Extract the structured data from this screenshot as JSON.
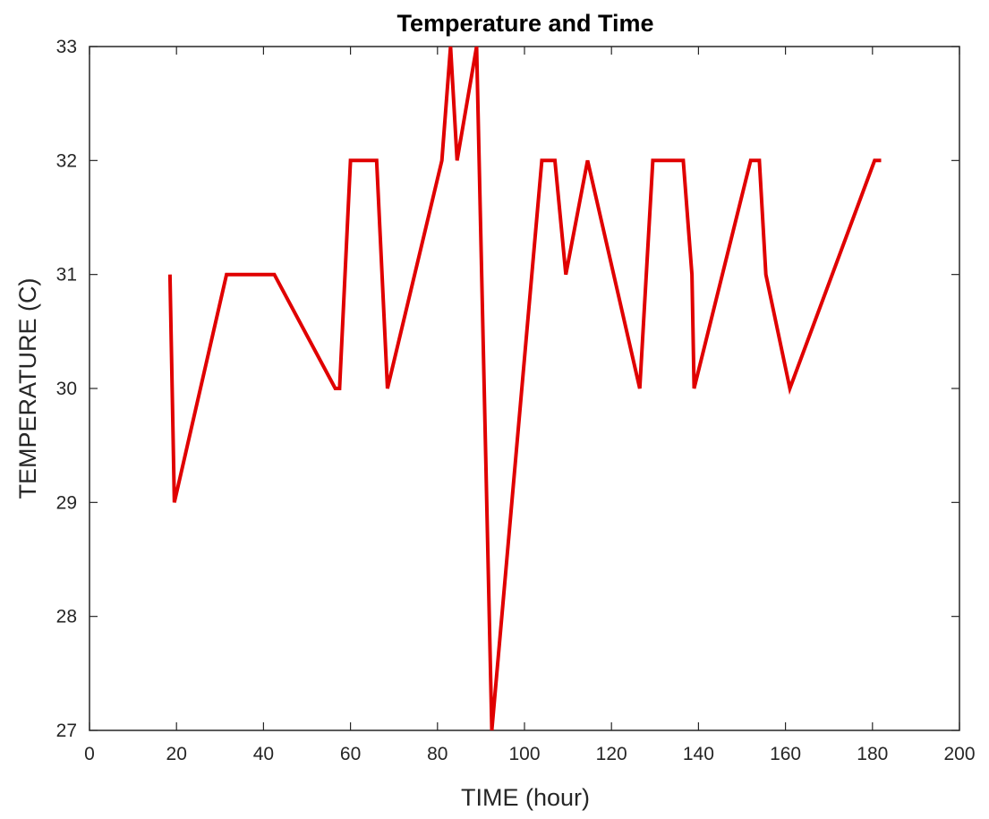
{
  "chart_data": {
    "type": "line",
    "title": "Temperature and Time",
    "xlabel": "TIME (hour)",
    "ylabel": "TEMPERATURE (C)",
    "xlim": [
      0,
      200
    ],
    "ylim": [
      27,
      33
    ],
    "xticks": [
      0,
      20,
      40,
      60,
      80,
      100,
      120,
      140,
      160,
      180,
      200
    ],
    "yticks": [
      27,
      28,
      29,
      30,
      31,
      32,
      33
    ],
    "xtick_labels": [
      "0",
      "20",
      "40",
      "60",
      "80",
      "100",
      "120",
      "140",
      "160",
      "180",
      "200"
    ],
    "ytick_labels": [
      "27",
      "28",
      "29",
      "30",
      "31",
      "32",
      "33"
    ],
    "grid": false,
    "series": [
      {
        "color": "#e00000",
        "x": [
          18.5,
          19.5,
          31.5,
          42.5,
          56.5,
          57.5,
          60,
          66,
          68.5,
          81,
          83,
          84.5,
          89,
          92.5,
          104,
          107,
          109.5,
          114.5,
          126.5,
          129.5,
          136.5,
          138.5,
          139,
          152,
          154,
          155.5,
          161,
          180.5,
          182
        ],
        "y": [
          31,
          29,
          31,
          31,
          30,
          30,
          32,
          32,
          30,
          32,
          33,
          32,
          33,
          27,
          32,
          32,
          31,
          32,
          30,
          32,
          32,
          31,
          30,
          32,
          32,
          31,
          30,
          32,
          32
        ]
      }
    ]
  }
}
